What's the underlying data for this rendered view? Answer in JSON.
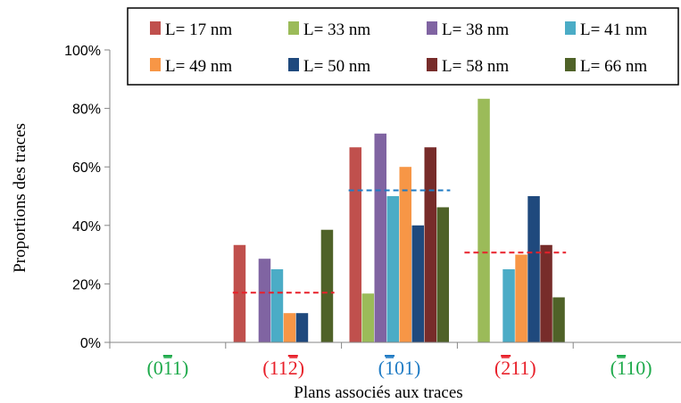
{
  "chart_data": {
    "type": "bar",
    "ylabel": "Proportions des traces",
    "xlabel": "Plans associés aux traces",
    "ylim": [
      0,
      100
    ],
    "ytick_labels": [
      "0%",
      "20%",
      "40%",
      "60%",
      "80%",
      "100%"
    ],
    "ytick_values": [
      0,
      20,
      40,
      60,
      80,
      100
    ],
    "grid": false,
    "legend_position": "top-right",
    "categories": [
      {
        "base": "(0",
        "bar": "1",
        "tail": "1)",
        "color": "#1eaa4b"
      },
      {
        "base": "(11",
        "bar": "2",
        "tail": ")",
        "color": "#e8202a"
      },
      {
        "base": "(",
        "bar": "1",
        "tail": "01)",
        "color": "#1f7bc4"
      },
      {
        "base": "(",
        "bar": "2",
        "tail": "11)",
        "color": "#e8202a"
      },
      {
        "base": "(",
        "bar": "1",
        "tail": "10)",
        "color": "#1eaa4b"
      }
    ],
    "series": [
      {
        "name": "L= 17 nm",
        "color": "#c0504d",
        "values": [
          0,
          33.3,
          66.7,
          0,
          0
        ]
      },
      {
        "name": "L= 33 nm",
        "color": "#9bbb59",
        "values": [
          0,
          0,
          16.7,
          83.3,
          0
        ]
      },
      {
        "name": "L= 38 nm",
        "color": "#8064a2",
        "values": [
          0,
          28.6,
          71.4,
          0,
          0
        ]
      },
      {
        "name": "L= 41 nm",
        "color": "#4bacc6",
        "values": [
          0,
          25,
          50,
          25,
          0
        ]
      },
      {
        "name": "L= 49 nm",
        "color": "#f79646",
        "values": [
          0,
          10,
          60,
          30,
          0
        ]
      },
      {
        "name": "L= 50 nm",
        "color": "#1f497d",
        "values": [
          0,
          10,
          40,
          50,
          0
        ]
      },
      {
        "name": "L= 58 nm",
        "color": "#772c2a",
        "values": [
          0,
          0,
          66.7,
          33.3,
          0
        ]
      },
      {
        "name": "L= 66 nm",
        "color": "#4f6228",
        "values": [
          0,
          38.5,
          46.2,
          15.4,
          0
        ]
      }
    ],
    "mean_lines": [
      {
        "category_index": 1,
        "value": 17,
        "color": "#e8202a"
      },
      {
        "category_index": 2,
        "value": 52,
        "color": "#1f7bc4"
      },
      {
        "category_index": 3,
        "value": 30.7,
        "color": "#e8202a"
      }
    ]
  }
}
